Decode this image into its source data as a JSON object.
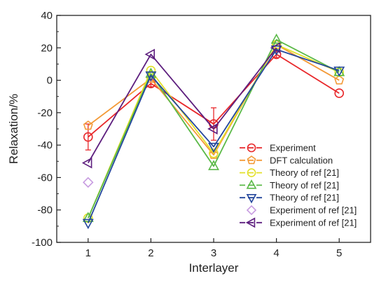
{
  "chart_data": {
    "type": "line",
    "xlabel": "Interlayer",
    "ylabel": "Relaxation/%",
    "x": [
      1,
      2,
      3,
      4,
      5
    ],
    "xlim": [
      0.5,
      5.5
    ],
    "ylim": [
      -100,
      40
    ],
    "xticks": [
      "1",
      "2",
      "3",
      "4",
      "5"
    ],
    "yticks": [
      "-100",
      "-80",
      "-60",
      "-40",
      "-20",
      "0",
      "20",
      "40"
    ],
    "grid": false,
    "legend_position": "lower-right",
    "series": [
      {
        "name": "Experiment",
        "marker": "circle",
        "color": "#e8282b",
        "line": true,
        "x": [
          1,
          2,
          3,
          4,
          5
        ],
        "values": [
          -35,
          -2,
          -27,
          16,
          -8
        ],
        "error": [
          8,
          2,
          10,
          2,
          0
        ]
      },
      {
        "name": "DFT calculation",
        "marker": "pentagon",
        "color": "#f39a37",
        "line": true,
        "x": [
          1,
          2,
          3,
          4,
          5
        ],
        "values": [
          -28,
          1,
          -46,
          22,
          0
        ]
      },
      {
        "name": "Theory of ref [21]",
        "marker": "circle",
        "color": "#e3e02a",
        "line": true,
        "x": [
          1,
          2,
          3,
          4,
          5
        ],
        "values": [
          -85,
          6,
          -45,
          22,
          5
        ]
      },
      {
        "name": "Theory of ref [21]",
        "marker": "triangle-up",
        "color": "#5ab947",
        "line": true,
        "x": [
          1,
          2,
          3,
          4,
          5
        ],
        "values": [
          -85,
          4,
          -53,
          25,
          5
        ]
      },
      {
        "name": "Theory of ref [21]",
        "marker": "triangle-down",
        "color": "#24479c",
        "line": true,
        "x": [
          1,
          2,
          3,
          4,
          5
        ],
        "values": [
          -88,
          3,
          -41,
          19,
          6
        ]
      },
      {
        "name": "Experiment of ref [21]",
        "marker": "diamond",
        "color": "#c79be0",
        "line": false,
        "x": [
          1
        ],
        "values": [
          -63
        ]
      },
      {
        "name": "Experiment of ref [21]",
        "marker": "triangle-left",
        "color": "#5d1e7e",
        "line": true,
        "x": [
          1,
          2,
          3,
          4
        ],
        "values": [
          -51,
          16,
          -30,
          20
        ]
      }
    ]
  }
}
